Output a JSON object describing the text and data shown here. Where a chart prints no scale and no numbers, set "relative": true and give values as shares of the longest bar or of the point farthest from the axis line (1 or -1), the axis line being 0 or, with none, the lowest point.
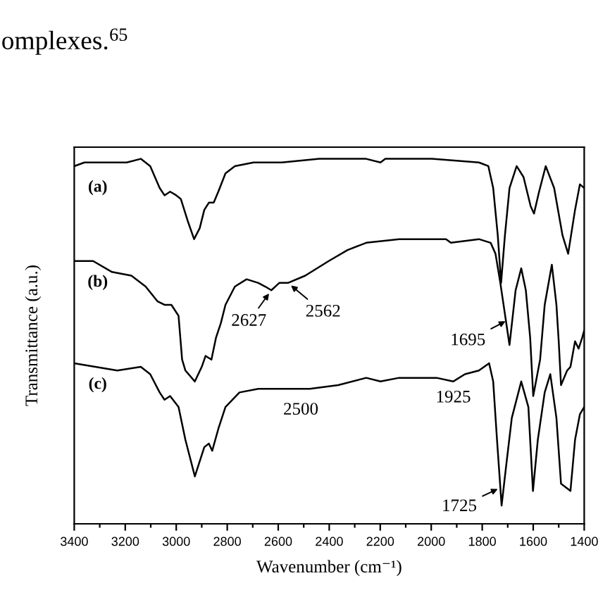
{
  "chart_data": {
    "type": "line",
    "relative": true,
    "xlabel": "Wavenumber (cm⁻¹)",
    "ylabel": "Transmittance (a.u.)",
    "xlim": [
      3400,
      1400
    ],
    "xticks": [
      3400,
      3200,
      3000,
      2800,
      2600,
      2400,
      2200,
      2000,
      1800,
      1600,
      1400
    ],
    "series": [
      {
        "name": "(a)",
        "color": "#000000",
        "x": [
          3400,
          3360,
          3194,
          3139,
          3102,
          3065,
          3046,
          3024,
          3000,
          2982,
          2955,
          2930,
          2908,
          2890,
          2872,
          2853,
          2835,
          2807,
          2770,
          2697,
          2586,
          2439,
          2365,
          2255,
          2199,
          2180,
          1997,
          1813,
          1776,
          1757,
          1739,
          1726,
          1711,
          1693,
          1665,
          1638,
          1610,
          1597,
          1577,
          1551,
          1518,
          1485,
          1463,
          1436,
          1417,
          1400
        ],
        "values": [
          0.98,
          0.99,
          0.99,
          1.0,
          0.98,
          0.92,
          0.9,
          0.91,
          0.9,
          0.89,
          0.83,
          0.78,
          0.81,
          0.86,
          0.88,
          0.88,
          0.91,
          0.96,
          0.98,
          0.99,
          0.99,
          1.0,
          1.0,
          1.0,
          0.99,
          1.0,
          1.0,
          0.99,
          0.98,
          0.92,
          0.79,
          0.66,
          0.79,
          0.92,
          0.98,
          0.95,
          0.87,
          0.85,
          0.91,
          0.98,
          0.92,
          0.79,
          0.74,
          0.86,
          0.93,
          0.92
        ]
      },
      {
        "name": "(b)",
        "color": "#000000",
        "x": [
          3400,
          3326,
          3252,
          3176,
          3120,
          3074,
          3046,
          3019,
          2991,
          2977,
          2964,
          2927,
          2900,
          2885,
          2862,
          2844,
          2825,
          2807,
          2770,
          2724,
          2678,
          2651,
          2627,
          2596,
          2562,
          2494,
          2402,
          2328,
          2255,
          2126,
          1942,
          1923,
          1813,
          1767,
          1748,
          1729,
          1693,
          1669,
          1647,
          1629,
          1612,
          1600,
          1573,
          1555,
          1527,
          1509,
          1500,
          1491,
          1467,
          1454,
          1436,
          1422,
          1408,
          1400
        ],
        "values": [
          0.72,
          0.72,
          0.69,
          0.68,
          0.65,
          0.61,
          0.6,
          0.6,
          0.57,
          0.45,
          0.42,
          0.39,
          0.43,
          0.46,
          0.45,
          0.51,
          0.55,
          0.6,
          0.65,
          0.67,
          0.66,
          0.65,
          0.64,
          0.66,
          0.66,
          0.68,
          0.72,
          0.75,
          0.77,
          0.78,
          0.78,
          0.77,
          0.78,
          0.77,
          0.74,
          0.66,
          0.49,
          0.64,
          0.7,
          0.64,
          0.51,
          0.35,
          0.45,
          0.6,
          0.71,
          0.6,
          0.5,
          0.38,
          0.42,
          0.43,
          0.5,
          0.48,
          0.51,
          0.53
        ]
      },
      {
        "name": "(c)",
        "color": "#000000",
        "x": [
          3400,
          3231,
          3139,
          3102,
          3065,
          3046,
          3024,
          2991,
          2964,
          2927,
          2890,
          2872,
          2859,
          2835,
          2807,
          2752,
          2678,
          2586,
          2476,
          2365,
          2255,
          2199,
          2126,
          1979,
          1914,
          1868,
          1813,
          1773,
          1757,
          1742,
          1724,
          1706,
          1684,
          1647,
          1619,
          1601,
          1582,
          1555,
          1533,
          1509,
          1491,
          1472,
          1454,
          1436,
          1417,
          1400
        ],
        "values": [
          0.44,
          0.42,
          0.43,
          0.41,
          0.36,
          0.34,
          0.35,
          0.32,
          0.23,
          0.13,
          0.21,
          0.22,
          0.2,
          0.26,
          0.32,
          0.36,
          0.37,
          0.37,
          0.37,
          0.38,
          0.4,
          0.39,
          0.4,
          0.4,
          0.39,
          0.41,
          0.42,
          0.44,
          0.39,
          0.23,
          0.05,
          0.16,
          0.29,
          0.39,
          0.32,
          0.09,
          0.23,
          0.36,
          0.41,
          0.29,
          0.11,
          0.1,
          0.09,
          0.23,
          0.3,
          0.32
        ]
      }
    ],
    "annotations": [
      "omplexes.$^{65}$",
      {
        "text": "2627",
        "x": 2627,
        "y": 0.64
      },
      {
        "text": "2562",
        "x": 2562,
        "y": 0.66
      },
      {
        "text": "1695",
        "x": 1695,
        "y": 0.56
      },
      {
        "text": "1725",
        "x": 1725,
        "y": 0.1
      },
      {
        "text": "2500",
        "x": 2500,
        "y": 0.37
      },
      {
        "text": "1925",
        "x": 1925,
        "y": 0.39
      }
    ]
  }
}
